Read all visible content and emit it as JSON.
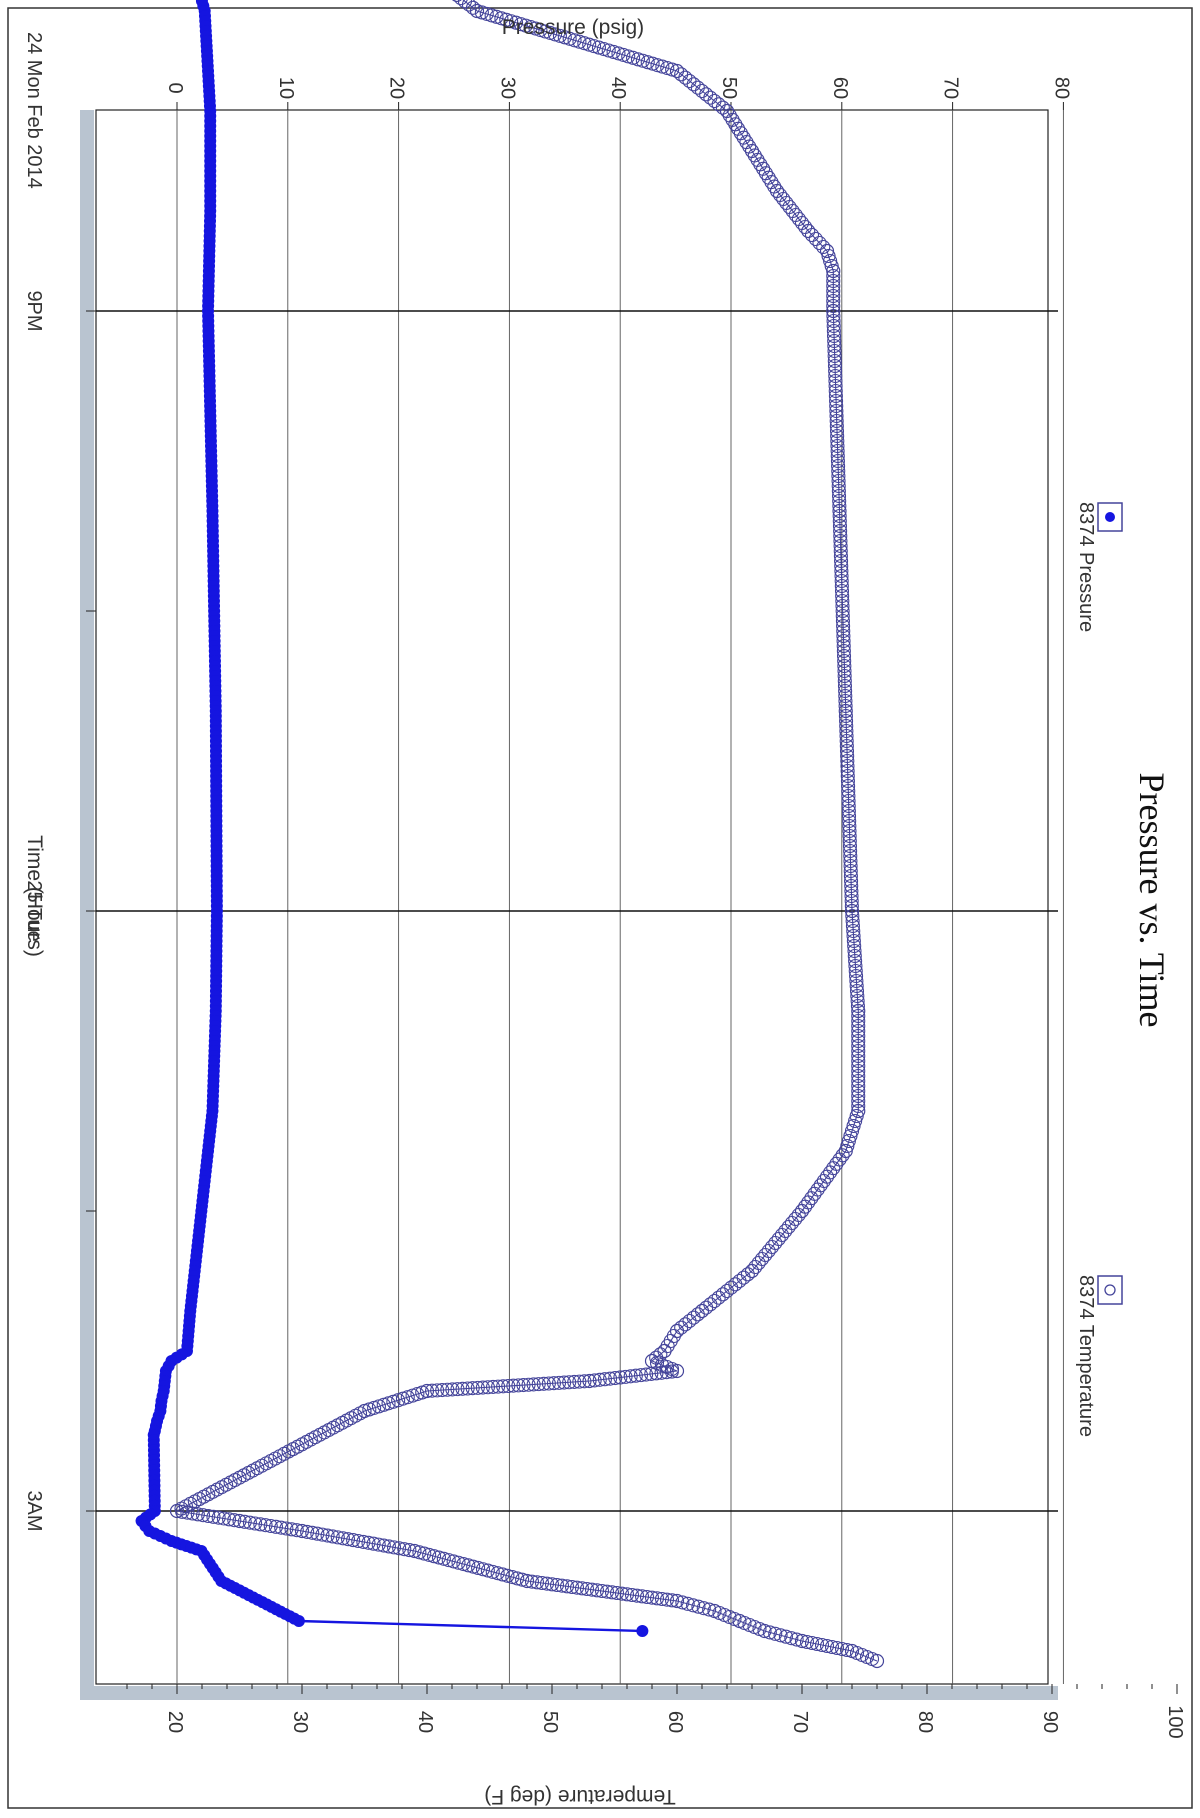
{
  "chart_data": {
    "type": "scatter",
    "orientation": "rotated 90 degrees clockwise",
    "title": "Pressure vs. Time",
    "xlabel": "Time (Hours)",
    "ylabel_left": "Pressure (psig)",
    "ylabel_right": "Temperature (deg F)",
    "x_range_hours": [
      -4.0,
      5.0
    ],
    "ylim_pressure": [
      -8,
      80
    ],
    "ylim_temperature": [
      14,
      105
    ],
    "grid": true,
    "pressure_ticks": [
      "0",
      "10",
      "20",
      "30",
      "40",
      "50",
      "60",
      "70",
      "80"
    ],
    "temperature_ticks": [
      "20",
      "30",
      "40",
      "50",
      "60",
      "70",
      "80",
      "90",
      "100"
    ],
    "x_tick_labels": [
      {
        "hour": -3.0,
        "label": "9PM"
      },
      {
        "hour": 0.0,
        "label": "25 Tue"
      },
      {
        "hour": 3.0,
        "label": "3AM"
      }
    ],
    "date_label": "24 Mon Feb 2014",
    "legend": [
      {
        "name": "8374 Pressure",
        "marker": "filled-circle",
        "placement": "top"
      },
      {
        "name": "8374 Temperature",
        "marker": "open-circle",
        "placement": "top"
      }
    ],
    "colors": {
      "pressure": "#1515e0",
      "temperature": "#44449a",
      "frame_shadow": "#b9c4d0",
      "grid": "#111111"
    },
    "series": [
      {
        "name": "8374 Pressure",
        "marker": "filled",
        "x": [
          -5.3,
          -5.28,
          -5.25,
          -5.0,
          -4.95,
          -4.8,
          -4.7,
          -4.65,
          -4.6,
          -4.5,
          -4.0,
          -3.5,
          -3.0,
          -2.0,
          -1.0,
          0.0,
          0.5,
          1.0,
          2.0,
          2.2,
          2.25,
          2.3,
          2.4,
          2.45,
          2.5,
          2.55,
          2.6,
          2.62,
          3.0,
          3.05,
          3.1,
          3.15,
          3.2,
          3.35,
          3.55,
          3.6
        ],
        "y": [
          -2,
          -1,
          0,
          0,
          0.5,
          1,
          1.5,
          1.8,
          2,
          2.5,
          3,
          3,
          2.8,
          3.2,
          3.5,
          3.6,
          3.5,
          3.2,
          1.2,
          0.9,
          -0.5,
          -1,
          -1.2,
          -1.4,
          -1.5,
          -1.8,
          -2,
          -2.1,
          -2,
          -3.2,
          -2.5,
          -0.5,
          2.2,
          4,
          11,
          42
        ]
      },
      {
        "name": "8374 Temperature",
        "marker": "open",
        "x": [
          -5.3,
          -5.28,
          -5.25,
          -5.2,
          -4.95,
          -4.5,
          -4.2,
          -4.0,
          -3.8,
          -3.6,
          -3.4,
          -3.3,
          -3.2,
          -3.0,
          -2.0,
          -1.0,
          0.0,
          0.5,
          1.0,
          1.2,
          1.5,
          1.8,
          2.0,
          2.1,
          2.2,
          2.25,
          2.3,
          2.35,
          2.4,
          2.5,
          3.0,
          3.05,
          3.1,
          3.2,
          3.35,
          3.45,
          3.5,
          3.55,
          3.6,
          3.65,
          3.7,
          3.75
        ],
        "y": [
          33,
          36,
          38,
          36,
          35,
          44,
          60,
          64,
          66,
          68,
          70.5,
          72,
          72.5,
          72.5,
          73,
          73.5,
          74,
          74.5,
          74.5,
          73.5,
          70,
          66,
          62,
          60,
          59,
          58,
          60,
          53,
          40,
          35,
          20,
          25,
          30,
          39,
          48,
          60,
          63,
          65,
          67,
          70,
          74,
          76
        ]
      }
    ]
  }
}
